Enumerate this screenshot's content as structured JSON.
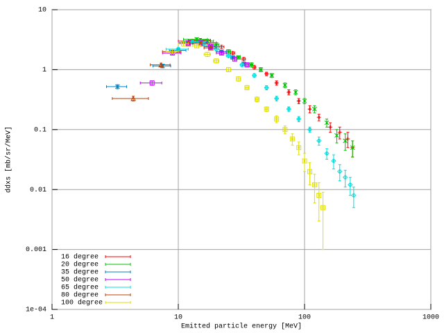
{
  "chart_data": {
    "type": "scatter",
    "xlabel": "Emitted particle energy [MeV]",
    "ylabel": "ddxs [mb/sr/MeV]",
    "xscale": "log",
    "yscale": "log",
    "grid": true,
    "legend": "lower left",
    "xlim": [
      1,
      1000
    ],
    "xticks": [
      1,
      10,
      100,
      1000
    ],
    "ylim": [
      0.0001,
      10
    ],
    "yticks": [
      10,
      1,
      0.1,
      0.01,
      0.001,
      {
        "value": 0.0001,
        "label": "1e-04"
      }
    ],
    "series": [
      {
        "name": "16 degree",
        "color": "#ff0000",
        "marker": "plus",
        "x": [
          13,
          15,
          18,
          22,
          27,
          33,
          40,
          50,
          60,
          75,
          90,
          110,
          130,
          160,
          190,
          220,
          240
        ],
        "values": [
          3.0,
          3.1,
          2.8,
          2.4,
          1.9,
          1.5,
          1.1,
          0.85,
          0.6,
          0.42,
          0.3,
          0.22,
          0.16,
          0.11,
          0.09,
          0.07,
          0.05
        ],
        "errors": [
          0.2,
          0.2,
          0.2,
          0.15,
          0.1,
          0.1,
          0.08,
          0.06,
          0.05,
          0.04,
          0.03,
          0.03,
          0.02,
          0.02,
          0.02,
          0.02,
          0.015
        ],
        "xerrors": [
          3,
          3,
          2,
          1,
          1,
          1,
          1,
          1,
          1,
          1,
          1,
          1,
          1,
          1,
          1,
          1,
          1
        ]
      },
      {
        "name": "20 degree",
        "color": "#00c000",
        "marker": "cross",
        "x": [
          14,
          17,
          20,
          25,
          30,
          38,
          45,
          55,
          70,
          85,
          100,
          120,
          150,
          180,
          210,
          240
        ],
        "values": [
          3.2,
          3.0,
          2.6,
          2.0,
          1.6,
          1.2,
          1.0,
          0.8,
          0.55,
          0.42,
          0.3,
          0.22,
          0.13,
          0.08,
          0.065,
          0.05
        ],
        "errors": [
          0.2,
          0.2,
          0.2,
          0.15,
          0.1,
          0.1,
          0.08,
          0.06,
          0.05,
          0.04,
          0.03,
          0.03,
          0.02,
          0.02,
          0.02,
          0.015
        ],
        "xerrors": [
          3,
          2,
          1,
          1,
          1,
          1,
          1,
          1,
          1,
          1,
          1,
          1,
          1,
          1,
          1,
          1
        ]
      },
      {
        "name": "35 degree",
        "color": "#0080c0",
        "marker": "star",
        "x": [
          3.3,
          7.5,
          10,
          12,
          15,
          18,
          22,
          27,
          33
        ],
        "values": [
          0.52,
          1.15,
          2.1,
          2.8,
          2.9,
          2.5,
          2.0,
          1.6,
          1.25
        ],
        "errors": [
          0.04,
          0.08,
          0.15,
          0.2,
          0.2,
          0.15,
          0.1,
          0.1,
          0.08
        ],
        "xerrors": [
          0.6,
          1.2,
          1.5,
          2,
          2,
          2,
          2,
          1,
          1
        ]
      },
      {
        "name": "50 degree",
        "color": "#c000ff",
        "marker": "square",
        "x": [
          6.2,
          9,
          12,
          15,
          18,
          22,
          28,
          35
        ],
        "values": [
          0.6,
          1.9,
          2.8,
          2.8,
          2.4,
          1.9,
          1.5,
          1.2
        ],
        "errors": [
          0.05,
          0.12,
          0.2,
          0.2,
          0.15,
          0.1,
          0.1,
          0.08
        ],
        "xerrors": [
          1.2,
          1.5,
          2,
          2,
          2,
          2,
          1,
          1
        ]
      },
      {
        "name": "65 degree",
        "color": "#00e0e0",
        "marker": "diamond",
        "x": [
          10,
          13,
          16,
          20,
          25,
          32,
          40,
          50,
          60,
          75,
          90,
          110,
          130,
          150,
          170,
          190,
          210,
          230,
          245
        ],
        "values": [
          2.2,
          2.9,
          2.7,
          2.2,
          1.7,
          1.2,
          0.8,
          0.5,
          0.33,
          0.22,
          0.15,
          0.1,
          0.065,
          0.04,
          0.03,
          0.02,
          0.016,
          0.012,
          0.008
        ],
        "errors": [
          0.15,
          0.2,
          0.2,
          0.15,
          0.1,
          0.08,
          0.06,
          0.04,
          0.03,
          0.02,
          0.015,
          0.01,
          0.01,
          0.008,
          0.008,
          0.006,
          0.005,
          0.004,
          0.003
        ],
        "xerrors": [
          2,
          2,
          2,
          1,
          1,
          1,
          1,
          1,
          1,
          1,
          1,
          1,
          1,
          1,
          1,
          1,
          1,
          1,
          1
        ]
      },
      {
        "name": "80 degree",
        "color": "#c04000",
        "marker": "triangle",
        "x": [
          4.4,
          7.3,
          9,
          12,
          15,
          18
        ],
        "values": [
          0.33,
          1.2,
          2.0,
          2.7,
          2.7,
          2.3
        ],
        "errors": [
          0.03,
          0.08,
          0.15,
          0.2,
          0.2,
          0.15
        ],
        "xerrors": [
          1.4,
          1.3,
          1.5,
          2,
          2,
          2
        ]
      },
      {
        "name": "100 degree",
        "color": "#e0e000",
        "marker": "square",
        "x": [
          9,
          11,
          14,
          17,
          20,
          25,
          30,
          35,
          42,
          50,
          60,
          70,
          80,
          90,
          100,
          110,
          120,
          130,
          140
        ],
        "values": [
          2.0,
          2.7,
          2.5,
          1.8,
          1.4,
          1.0,
          0.7,
          0.5,
          0.32,
          0.22,
          0.15,
          0.1,
          0.07,
          0.05,
          0.03,
          0.02,
          0.012,
          0.008,
          0.005
        ],
        "errors": [
          0.15,
          0.2,
          0.2,
          0.15,
          0.1,
          0.08,
          0.06,
          0.04,
          0.03,
          0.02,
          0.02,
          0.015,
          0.015,
          0.012,
          0.01,
          0.008,
          0.006,
          0.005,
          0.004
        ],
        "xerrors": [
          1,
          1,
          1,
          1,
          1,
          1,
          1,
          1,
          1,
          1,
          1,
          1,
          1,
          1,
          1,
          1,
          1,
          1,
          1
        ]
      }
    ]
  }
}
